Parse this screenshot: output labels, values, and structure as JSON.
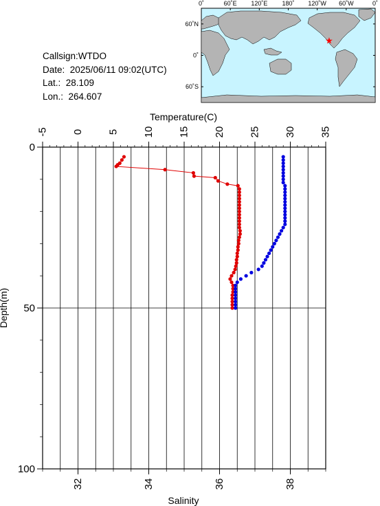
{
  "info": {
    "callsign": "Callsign:WTDO",
    "date": "Date:  2025/06/11 09:02(UTC)",
    "lat": "Lat.:  28.109",
    "lon": "Lon.:  264.607"
  },
  "map": {
    "top_ticks": [
      "0˚",
      "60˚E",
      "120˚E",
      "180˚",
      "120˚W",
      "60˚W",
      "0˚"
    ],
    "left_ticks": [
      "60˚N",
      "0˚",
      "60˚S"
    ],
    "ocean_color": "#c8f4ff",
    "land_color": "#b4b4b4",
    "marker_color": "#ff0000",
    "marker_lat": 28.109,
    "marker_lon": 264.607
  },
  "chart_data": {
    "type": "scatter",
    "title": "",
    "top_axis": {
      "label": "Temperature(C)",
      "ticks": [
        "-5",
        "0",
        "5",
        "10",
        "15",
        "20",
        "25",
        "30",
        "35"
      ],
      "range": [
        -5,
        35
      ]
    },
    "bottom_axis": {
      "label": "Salinity",
      "ticks": [
        "32",
        "34",
        "36",
        "38"
      ],
      "range": [
        31,
        39
      ]
    },
    "left_axis": {
      "label": "Depth(m)",
      "ticks": [
        "0",
        "50",
        "100"
      ],
      "range": [
        0,
        100
      ],
      "inverted": true
    },
    "grid": true,
    "series": [
      {
        "color": "#e00000",
        "axis": "top",
        "line": true,
        "points": [
          [
            6.5,
            3
          ],
          [
            6.2,
            4
          ],
          [
            5.9,
            5
          ],
          [
            5.6,
            5.5
          ],
          [
            5.4,
            6
          ],
          [
            12.3,
            7
          ],
          [
            16.3,
            8
          ],
          [
            16.4,
            9
          ],
          [
            19.4,
            9.5
          ],
          [
            19.8,
            10.5
          ],
          [
            21.1,
            11.5
          ],
          [
            22.6,
            12
          ],
          [
            22.8,
            13
          ],
          [
            22.8,
            14
          ],
          [
            22.8,
            15
          ],
          [
            22.8,
            16
          ],
          [
            22.8,
            17
          ],
          [
            22.8,
            18
          ],
          [
            22.8,
            19
          ],
          [
            22.8,
            20
          ],
          [
            22.8,
            21
          ],
          [
            22.8,
            22
          ],
          [
            22.8,
            23
          ],
          [
            22.8,
            24
          ],
          [
            22.8,
            25
          ],
          [
            22.9,
            26
          ],
          [
            22.9,
            27
          ],
          [
            22.8,
            28
          ],
          [
            22.7,
            29
          ],
          [
            22.7,
            30
          ],
          [
            22.6,
            31
          ],
          [
            22.6,
            32
          ],
          [
            22.5,
            33
          ],
          [
            22.5,
            34
          ],
          [
            22.4,
            35
          ],
          [
            22.4,
            36
          ],
          [
            22.3,
            37
          ],
          [
            22.2,
            38
          ],
          [
            22.0,
            39
          ],
          [
            21.7,
            40
          ],
          [
            21.5,
            41
          ],
          [
            21.7,
            42
          ],
          [
            21.9,
            43
          ],
          [
            21.9,
            44
          ],
          [
            21.9,
            45
          ],
          [
            21.8,
            46
          ],
          [
            21.8,
            47
          ],
          [
            21.8,
            48
          ],
          [
            21.8,
            49
          ],
          [
            21.8,
            50
          ]
        ]
      },
      {
        "color": "#0000e0",
        "axis": "bottom",
        "line": false,
        "points": [
          [
            37.8,
            3
          ],
          [
            37.8,
            4
          ],
          [
            37.8,
            5
          ],
          [
            37.8,
            6
          ],
          [
            37.8,
            7
          ],
          [
            37.8,
            8
          ],
          [
            37.8,
            9
          ],
          [
            37.8,
            10
          ],
          [
            37.8,
            11
          ],
          [
            37.85,
            12
          ],
          [
            37.85,
            13
          ],
          [
            37.85,
            14
          ],
          [
            37.85,
            15
          ],
          [
            37.85,
            16
          ],
          [
            37.85,
            17
          ],
          [
            37.85,
            18
          ],
          [
            37.85,
            19
          ],
          [
            37.85,
            20
          ],
          [
            37.85,
            21
          ],
          [
            37.85,
            22
          ],
          [
            37.85,
            23
          ],
          [
            37.85,
            24
          ],
          [
            37.8,
            25
          ],
          [
            37.75,
            26
          ],
          [
            37.7,
            27
          ],
          [
            37.65,
            28
          ],
          [
            37.6,
            29
          ],
          [
            37.55,
            30
          ],
          [
            37.5,
            31
          ],
          [
            37.45,
            32
          ],
          [
            37.4,
            33
          ],
          [
            37.35,
            34
          ],
          [
            37.3,
            35
          ],
          [
            37.25,
            36
          ],
          [
            37.2,
            37
          ],
          [
            37.1,
            38
          ],
          [
            36.9,
            39
          ],
          [
            36.75,
            40
          ],
          [
            36.6,
            41
          ],
          [
            36.5,
            42
          ],
          [
            36.45,
            43
          ],
          [
            36.45,
            44
          ],
          [
            36.45,
            45
          ],
          [
            36.45,
            46
          ],
          [
            36.45,
            47
          ],
          [
            36.45,
            48
          ],
          [
            36.45,
            49
          ],
          [
            36.45,
            50
          ]
        ]
      }
    ]
  }
}
